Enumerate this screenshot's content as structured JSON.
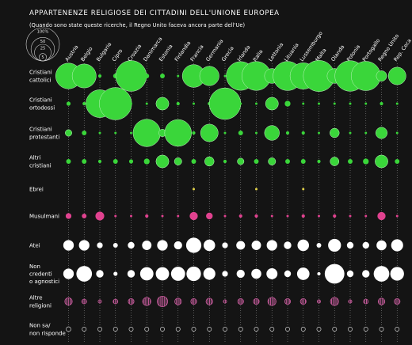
{
  "header": {
    "title": "APPARTENENZE RELIGIOSE DEI CITTADINI DELL'UNIONE EUROPEA",
    "subtitle": "(Quando sono state queste ricerche, il Regno Unito faceva ancora parte dell'Ue)"
  },
  "legend": {
    "labels": [
      "100%",
      "50",
      "25",
      "5"
    ],
    "values": [
      100,
      50,
      25,
      5
    ]
  },
  "colors": {
    "background": "#141414",
    "christian": "#3ad63a",
    "jewish": "#e6d64a",
    "muslim": "#e0428f",
    "atheist": "#ffffff",
    "nonbeliever": "#ffffff",
    "other": "#c45a9a",
    "dontknow": "#cfcfcf"
  },
  "chart_data": {
    "type": "bubble-matrix",
    "title": "APPARTENENZE RELIGIOSE DEI CITTADINI DELL'UNIONE EUROPEA",
    "unit": "%",
    "countries": [
      "Austria",
      "Belgio",
      "Bulgaria",
      "Cipro",
      "Croazia",
      "Danimarca",
      "Estonia",
      "Finlandia",
      "Francia",
      "Germania",
      "Grecia",
      "Irlanda",
      "Italia",
      "Lettonia",
      "Lituania",
      "Lussemburgo",
      "Malta",
      "Olanda",
      "Polonia",
      "Portogallo",
      "Regno Unito",
      "Rep. Ceca"
    ],
    "series": [
      {
        "name": "Cristiani cattolici",
        "label_lines": [
          "Cristiani",
          "cattolici"
        ],
        "color": "#3ad63a",
        "style": "filled",
        "values": [
          60,
          52,
          1,
          2,
          86,
          2,
          2,
          0.5,
          47,
          34,
          0.5,
          75,
          76,
          20,
          77,
          63,
          88,
          20,
          85,
          78,
          10,
          28
        ]
      },
      {
        "name": "Cristiani ortodossi",
        "label_lines": [
          "Cristiani",
          "ortodossi"
        ],
        "color": "#3ad63a",
        "style": "filled",
        "values": [
          1.5,
          1,
          70,
          95,
          0.5,
          0.5,
          15,
          1,
          0.5,
          1,
          90,
          0.5,
          0.5,
          15,
          3,
          0.5,
          0.5,
          0.5,
          0.5,
          0.5,
          1,
          0.5
        ]
      },
      {
        "name": "Cristiani protestanti",
        "label_lines": [
          "Cristiani",
          "protestanti"
        ],
        "color": "#3ad63a",
        "style": "filled",
        "values": [
          4,
          2,
          0.5,
          0.5,
          0.5,
          68,
          5,
          65,
          1,
          28,
          0.5,
          2,
          0.5,
          20,
          1,
          1,
          0.5,
          8,
          0.5,
          0.5,
          12,
          0.5
        ]
      },
      {
        "name": "Altri cristiani",
        "label_lines": [
          "Altri",
          "cristiani"
        ],
        "color": "#3ad63a",
        "style": "filled",
        "values": [
          2,
          2,
          1,
          2,
          1.5,
          3,
          15,
          5,
          2,
          8,
          1,
          4,
          2,
          5,
          2,
          2,
          1,
          7,
          2,
          3,
          15,
          2
        ]
      },
      {
        "name": "Ebrei",
        "label_lines": [
          "Ebrei"
        ],
        "color": "#e6d64a",
        "style": "filled",
        "values": [
          0,
          0,
          0,
          0,
          0,
          0,
          0,
          0,
          0.5,
          0,
          0,
          0,
          0.5,
          0,
          0,
          0.5,
          0,
          0,
          0,
          0,
          0,
          0
        ]
      },
      {
        "name": "Musulmani",
        "label_lines": [
          "Musulmani"
        ],
        "color": "#e0428f",
        "style": "filled",
        "values": [
          3,
          2,
          7,
          0.5,
          0.5,
          1,
          0.5,
          0.5,
          6,
          4,
          0.5,
          1,
          1,
          0.5,
          0.5,
          1,
          0.5,
          1,
          0.5,
          0.5,
          6,
          0.5
        ]
      },
      {
        "name": "Atei",
        "label_lines": [
          "Atei"
        ],
        "color": "#ffffff",
        "style": "filled",
        "values": [
          10,
          10,
          3,
          2,
          4,
          8,
          10,
          6,
          21,
          12,
          3,
          7,
          8,
          10,
          5,
          12,
          2,
          15,
          4,
          4,
          9,
          13
        ]
      },
      {
        "name": "Non credenti o agnostici",
        "label_lines": [
          "Non",
          "credenti",
          "o agnostici"
        ],
        "color": "#ffffff",
        "style": "filled",
        "values": [
          10,
          22,
          5,
          1.5,
          5,
          16,
          16,
          18,
          19,
          13,
          3,
          6,
          9,
          11,
          4,
          14,
          1,
          35,
          4,
          5,
          22,
          17
        ]
      },
      {
        "name": "Altre religioni",
        "label_lines": [
          "Altre",
          "religioni"
        ],
        "color": "#c45a9a",
        "style": "hatched",
        "values": [
          5,
          2,
          1,
          2,
          3,
          6,
          10,
          4,
          3,
          4,
          1,
          3,
          3,
          6,
          3,
          3,
          1,
          6,
          1,
          2,
          4,
          3
        ]
      },
      {
        "name": "Non sa/ non risponde",
        "label_lines": [
          "Non sa/",
          "non risponde"
        ],
        "color": "#cfcfcf",
        "style": "outline",
        "values": [
          2,
          1,
          1,
          1,
          1,
          1,
          1,
          1,
          1,
          1,
          1,
          1,
          1,
          1,
          1,
          1,
          1,
          1,
          1,
          1,
          1,
          1
        ]
      }
    ]
  }
}
